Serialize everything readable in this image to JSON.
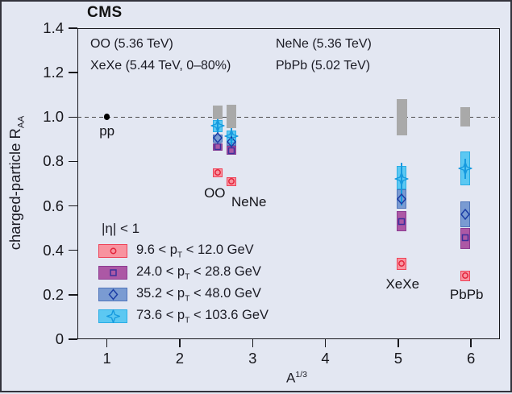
{
  "title": "CMS",
  "header_legend": {
    "col1": [
      "OO (5.36 TeV)",
      "XeXe (5.44 TeV, 0–80%)"
    ],
    "col2": [
      "NeNe (5.36 TeV)",
      "PbPb (5.02 TeV)"
    ]
  },
  "eta_label": "|η| < 1",
  "colors": {
    "background": "#e3e7f2",
    "frame": "#17171c",
    "norm_band": "#a9a9a9",
    "reference_line": "#4a4a4a",
    "pp_point": "#000000"
  },
  "chart_data": {
    "type": "scatter",
    "title": "CMS",
    "xlabel": "A^(1/3)",
    "ylabel": "charged-particle R_AA",
    "eta_cut": "|η| < 1",
    "axes": {
      "x": {
        "label_base": "A",
        "label_sup": "1/3",
        "range": [
          0.594,
          6.397
        ],
        "ticks": [
          1,
          2,
          3,
          4,
          5,
          6
        ]
      },
      "y": {
        "label_base": "charged-particle R",
        "label_sub": "AA",
        "range": [
          0,
          1.4
        ],
        "tick_values": [
          0,
          0.2,
          0.4,
          0.6,
          0.8,
          1.0,
          1.2,
          1.4
        ],
        "tick_labels": [
          "0",
          "0.2",
          "0.4",
          "0.6",
          "0.8",
          "1.0",
          "1.2",
          "1.4"
        ]
      }
    },
    "reference_line_y": 1.0,
    "pp": {
      "x": 1.0,
      "y": 1.0,
      "label": "pp"
    },
    "systems": [
      {
        "name": "OO",
        "x": 2.52,
        "norm_band": [
          0.99,
          1.051
        ],
        "label_pos": {
          "x": 2.48,
          "y": 0.655
        }
      },
      {
        "name": "NeNe",
        "x": 2.71,
        "norm_band": [
          0.951,
          1.057
        ],
        "label_pos": {
          "x": 2.95,
          "y": 0.615
        }
      },
      {
        "name": "XeXe",
        "x": 5.05,
        "norm_band": [
          0.919,
          1.082
        ],
        "label_pos": {
          "x": 5.06,
          "y": 0.245
        }
      },
      {
        "name": "PbPb",
        "x": 5.92,
        "norm_band": [
          0.957,
          1.044
        ],
        "label_pos": {
          "x": 5.94,
          "y": 0.2
        }
      }
    ],
    "series": [
      {
        "name": "9.6 < pT < 12.0 GeV",
        "legend": {
          "prefix": "9.6 < p",
          "sub": "T",
          "suffix": " < 12.0 GeV"
        },
        "marker": "circle",
        "fill": "#f8939f",
        "edge": "#ee4257",
        "marker_color": "#e3243b",
        "points": [
          {
            "system": 0,
            "y": 0.75,
            "band": [
              0.73,
              0.77
            ]
          },
          {
            "system": 1,
            "y": 0.71,
            "band": [
              0.69,
              0.73
            ]
          },
          {
            "system": 2,
            "y": 0.34,
            "band": [
              0.313,
              0.365
            ]
          },
          {
            "system": 3,
            "y": 0.285,
            "band": [
              0.262,
              0.308
            ]
          }
        ]
      },
      {
        "name": "24.0 < pT < 28.8 GeV",
        "legend": {
          "prefix": "24.0 < p",
          "sub": "T",
          "suffix": " < 28.8 GeV"
        },
        "marker": "square",
        "fill": "#ac58a5",
        "edge": "#8d3c92",
        "marker_color": "#3b2f9c",
        "points": [
          {
            "system": 0,
            "y": 0.866,
            "band": [
              0.848,
              0.88
            ]
          },
          {
            "system": 1,
            "y": 0.85,
            "band": [
              0.83,
              0.872
            ]
          },
          {
            "system": 2,
            "y": 0.53,
            "band": [
              0.486,
              0.576
            ]
          },
          {
            "system": 3,
            "y": 0.457,
            "band": [
              0.405,
              0.501
            ]
          }
        ]
      },
      {
        "name": "35.2 < pT < 48.0 GeV",
        "legend": {
          "prefix": "35.2 < p",
          "sub": "T",
          "suffix": " < 48.0 GeV"
        },
        "marker": "diamond",
        "fill": "#7a9bd2",
        "edge": "#4f74ba",
        "marker_color": "#1c3ea6",
        "points": [
          {
            "system": 0,
            "y": 0.905,
            "band": [
              0.884,
              0.92
            ]
          },
          {
            "system": 1,
            "y": 0.888,
            "band": [
              0.87,
              0.91
            ]
          },
          {
            "system": 2,
            "y": 0.63,
            "band": [
              0.588,
              0.673
            ]
          },
          {
            "system": 3,
            "y": 0.561,
            "band": [
              0.504,
              0.621
            ]
          }
        ]
      },
      {
        "name": "73.6 < pT < 103.6 GeV",
        "legend": {
          "prefix": "73.6 < p",
          "sub": "T",
          "suffix": " < 103.6 GeV"
        },
        "marker": "star4",
        "fill": "#5cc8f2",
        "edge": "#29ade5",
        "marker_color": "#169adf",
        "points": [
          {
            "system": 0,
            "y": 0.962,
            "band": [
              0.932,
              0.988
            ],
            "err": [
              0.925,
              0.99
            ]
          },
          {
            "system": 1,
            "y": 0.915,
            "band": [
              0.884,
              0.94
            ],
            "err": [
              0.865,
              0.951
            ]
          },
          {
            "system": 2,
            "y": 0.722,
            "band": [
              0.673,
              0.781
            ],
            "err": [
              0.601,
              0.793
            ]
          },
          {
            "system": 3,
            "y": 0.77,
            "band": [
              0.691,
              0.845
            ],
            "err": [
              0.72,
              0.812
            ]
          }
        ]
      }
    ]
  }
}
